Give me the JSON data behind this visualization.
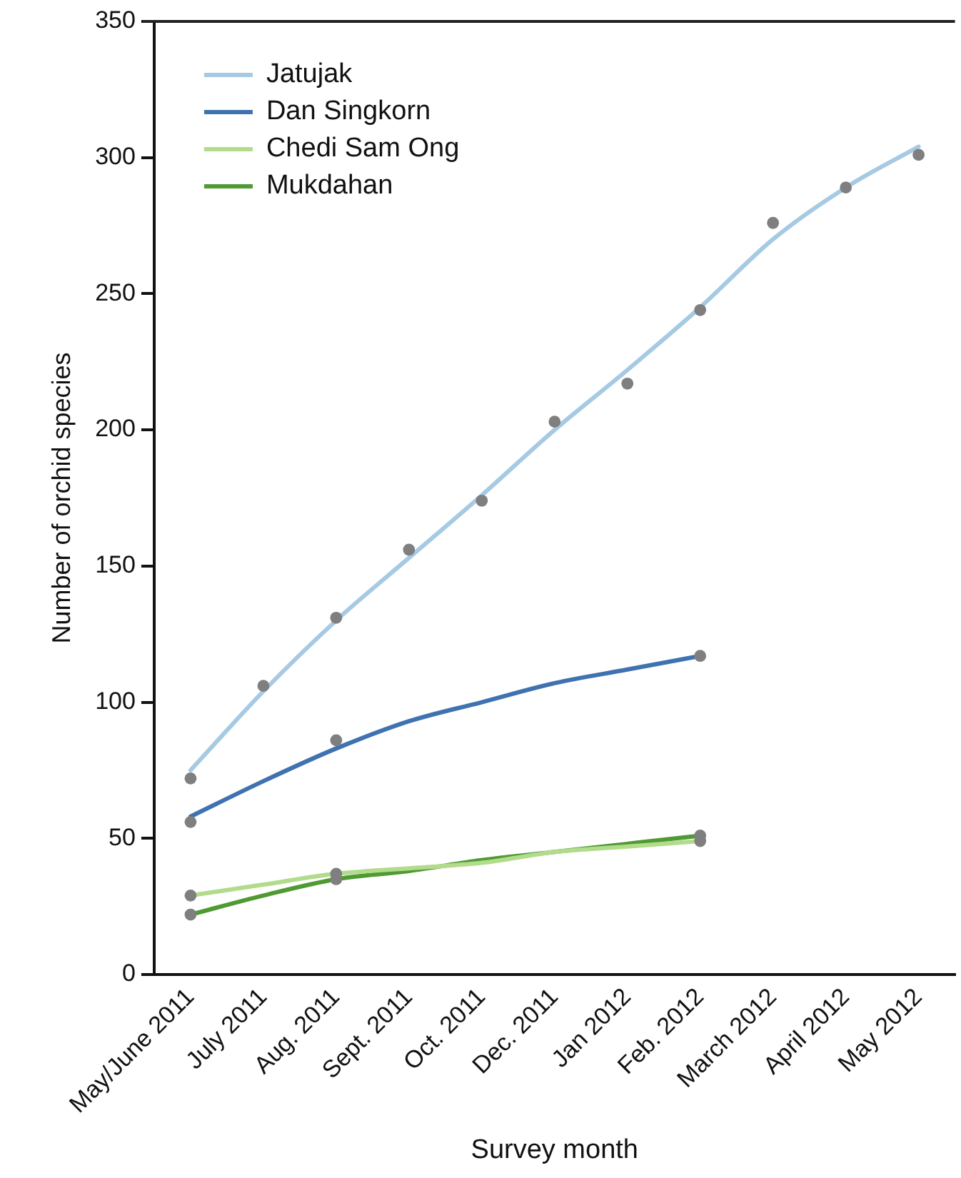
{
  "chart_data": {
    "type": "line",
    "xlabel": "Survey month",
    "ylabel": "Number of orchid species",
    "categories": [
      "May/June 2011",
      "July 2011",
      "Aug. 2011",
      "Sept. 2011",
      "Oct. 2011",
      "Dec. 2011",
      "Jan 2012",
      "Feb. 2012",
      "March 2012",
      "April 2012",
      "May 2012"
    ],
    "ylim": [
      0,
      350
    ],
    "yticks": [
      0,
      50,
      100,
      150,
      200,
      250,
      300,
      350
    ],
    "grid": false,
    "legend": "top left",
    "marker": "none",
    "line_style": "solid",
    "series": [
      {
        "name": "Jatujak",
        "color": "#a6cae3",
        "values": [
          75,
          104,
          130,
          153,
          176,
          200,
          222,
          245,
          270,
          289,
          304
        ]
      },
      {
        "name": "Dan Singkorn",
        "color": "#3f72b0",
        "values": [
          58,
          71,
          83,
          93,
          100,
          107,
          112,
          117,
          null,
          null,
          null
        ]
      },
      {
        "name": "Chedi Sam Ong",
        "color": "#b2dc8c",
        "values": [
          29,
          33,
          37,
          39,
          41,
          45,
          47,
          49,
          null,
          null,
          null
        ]
      },
      {
        "name": "Mukdahan",
        "color": "#4f9a33",
        "values": [
          22,
          29,
          35,
          38,
          42,
          45,
          48,
          51,
          null,
          null,
          null
        ]
      },
      {
        "type": "scatter",
        "color": "#7f7f7f",
        "marker": "circle",
        "values": [
          72,
          106,
          131,
          156,
          174,
          203,
          217,
          244,
          276,
          289,
          301
        ]
      },
      {
        "type": "scatter",
        "color": "#7f7f7f",
        "marker": "circle",
        "values": [
          56,
          null,
          86,
          null,
          null,
          null,
          null,
          117,
          null,
          null,
          null
        ]
      },
      {
        "type": "scatter",
        "color": "#7f7f7f",
        "marker": "circle",
        "values": [
          29,
          null,
          37,
          null,
          null,
          null,
          null,
          49,
          null,
          null,
          null
        ]
      },
      {
        "type": "scatter",
        "color": "#7f7f7f",
        "marker": "circle",
        "values": [
          22,
          null,
          35,
          null,
          null,
          null,
          null,
          51,
          null,
          null,
          null
        ]
      }
    ]
  }
}
